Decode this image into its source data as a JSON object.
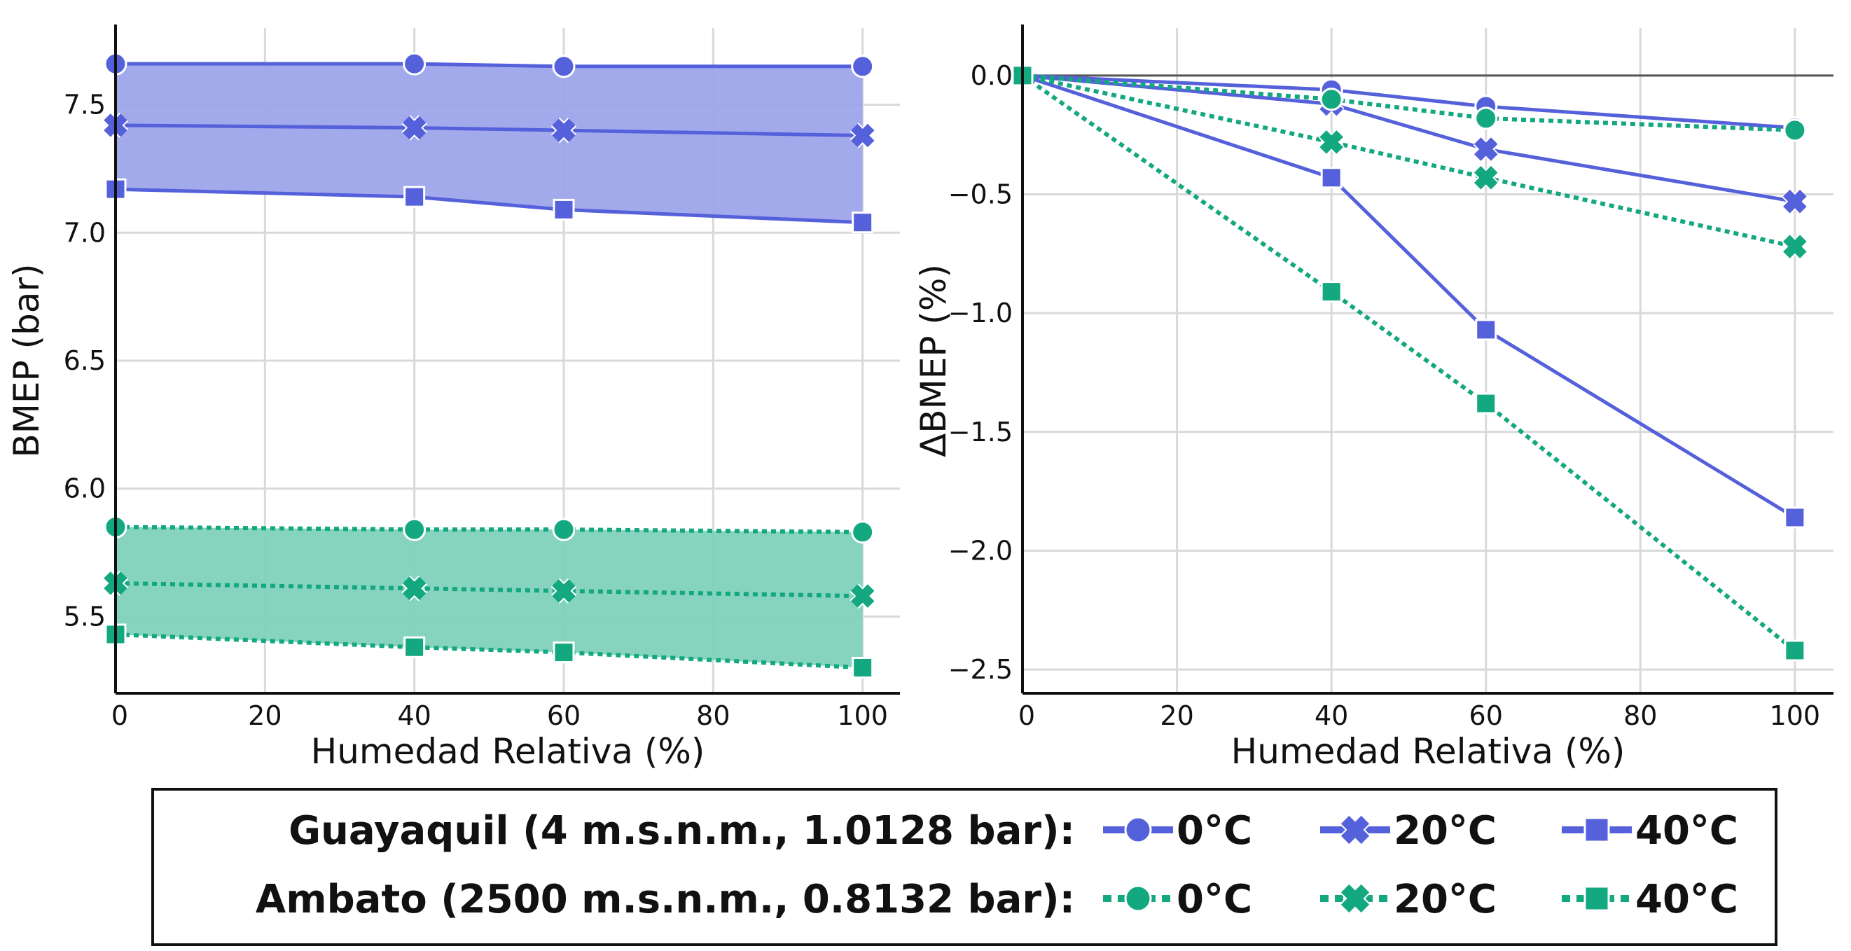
{
  "colors": {
    "blue": "#5560DB",
    "green": "#13A87F",
    "blue_fill": "#9EA5EA",
    "green_fill": "#80D2BB"
  },
  "chart_data": [
    {
      "type": "line",
      "xlabel": "Humedad Relativa (%)",
      "ylabel": "BMEP (bar)",
      "xlim": [
        0,
        105
      ],
      "ylim": [
        5.2,
        7.8
      ],
      "xticks": [
        0,
        20,
        40,
        60,
        80,
        100
      ],
      "yticks": [
        5.5,
        6.0,
        6.5,
        7.0,
        7.5
      ],
      "ytick_labels": [
        "5.5",
        "6.0",
        "6.5",
        "7.0",
        "7.5"
      ],
      "grid": true,
      "x": [
        0,
        40,
        60,
        100
      ],
      "series": [
        {
          "name": "Guayaquil 0°C",
          "group": "Guayaquil",
          "marker": "circle",
          "values": [
            7.66,
            7.66,
            7.65,
            7.65
          ]
        },
        {
          "name": "Guayaquil 20°C",
          "group": "Guayaquil",
          "marker": "x",
          "values": [
            7.42,
            7.41,
            7.4,
            7.38
          ]
        },
        {
          "name": "Guayaquil 40°C",
          "group": "Guayaquil",
          "marker": "square",
          "values": [
            7.17,
            7.14,
            7.09,
            7.04
          ]
        },
        {
          "name": "Ambato 0°C",
          "group": "Ambato",
          "marker": "circle",
          "values": [
            5.85,
            5.84,
            5.84,
            5.83
          ]
        },
        {
          "name": "Ambato 20°C",
          "group": "Ambato",
          "marker": "x",
          "values": [
            5.63,
            5.61,
            5.6,
            5.58
          ]
        },
        {
          "name": "Ambato 40°C",
          "group": "Ambato",
          "marker": "square",
          "values": [
            5.43,
            5.38,
            5.36,
            5.3
          ]
        }
      ],
      "bands": [
        {
          "group": "Guayaquil",
          "upper": "Guayaquil 0°C",
          "lower": "Guayaquil 40°C"
        },
        {
          "group": "Ambato",
          "upper": "Ambato 0°C",
          "lower": "Ambato 40°C"
        }
      ]
    },
    {
      "type": "line",
      "xlabel": "Humedad Relativa (%)",
      "ylabel": "ΔBMEP (%)",
      "xlim": [
        0,
        105
      ],
      "ylim": [
        -2.6,
        0.2
      ],
      "xticks": [
        0,
        20,
        40,
        60,
        80,
        100
      ],
      "yticks": [
        0.0,
        -0.5,
        -1.0,
        -1.5,
        -2.0,
        -2.5
      ],
      "ytick_labels": [
        "0.0",
        "−0.5",
        "−1.0",
        "−1.5",
        "−2.0",
        "−2.5"
      ],
      "grid": true,
      "zero_line": true,
      "x": [
        0,
        40,
        60,
        100
      ],
      "series": [
        {
          "name": "Guayaquil 0°C",
          "group": "Guayaquil",
          "marker": "circle",
          "values": [
            0,
            -0.06,
            -0.13,
            -0.22
          ]
        },
        {
          "name": "Guayaquil 20°C",
          "group": "Guayaquil",
          "marker": "x",
          "values": [
            0,
            -0.12,
            -0.31,
            -0.53
          ]
        },
        {
          "name": "Guayaquil 40°C",
          "group": "Guayaquil",
          "marker": "square",
          "values": [
            0,
            -0.43,
            -1.07,
            -1.86
          ]
        },
        {
          "name": "Ambato 0°C",
          "group": "Ambato",
          "marker": "circle",
          "values": [
            0,
            -0.1,
            -0.18,
            -0.23
          ]
        },
        {
          "name": "Ambato 20°C",
          "group": "Ambato",
          "marker": "x",
          "values": [
            0,
            -0.28,
            -0.43,
            -0.72
          ]
        },
        {
          "name": "Ambato 40°C",
          "group": "Ambato",
          "marker": "square",
          "values": [
            0,
            -0.91,
            -1.38,
            -2.42
          ]
        }
      ]
    }
  ],
  "legend": {
    "rows": [
      {
        "group": "Guayaquil",
        "label": "Guayaquil (4 m.s.n.m., 1.0128 bar):",
        "entries": [
          {
            "marker": "circle",
            "label": "0°C"
          },
          {
            "marker": "x",
            "label": "20°C"
          },
          {
            "marker": "square",
            "label": "40°C"
          }
        ]
      },
      {
        "group": "Ambato",
        "label": "Ambato (2500 m.s.n.m., 0.8132 bar):",
        "entries": [
          {
            "marker": "circle",
            "label": "0°C"
          },
          {
            "marker": "x",
            "label": "20°C"
          },
          {
            "marker": "square",
            "label": "40°C"
          }
        ]
      }
    ]
  }
}
